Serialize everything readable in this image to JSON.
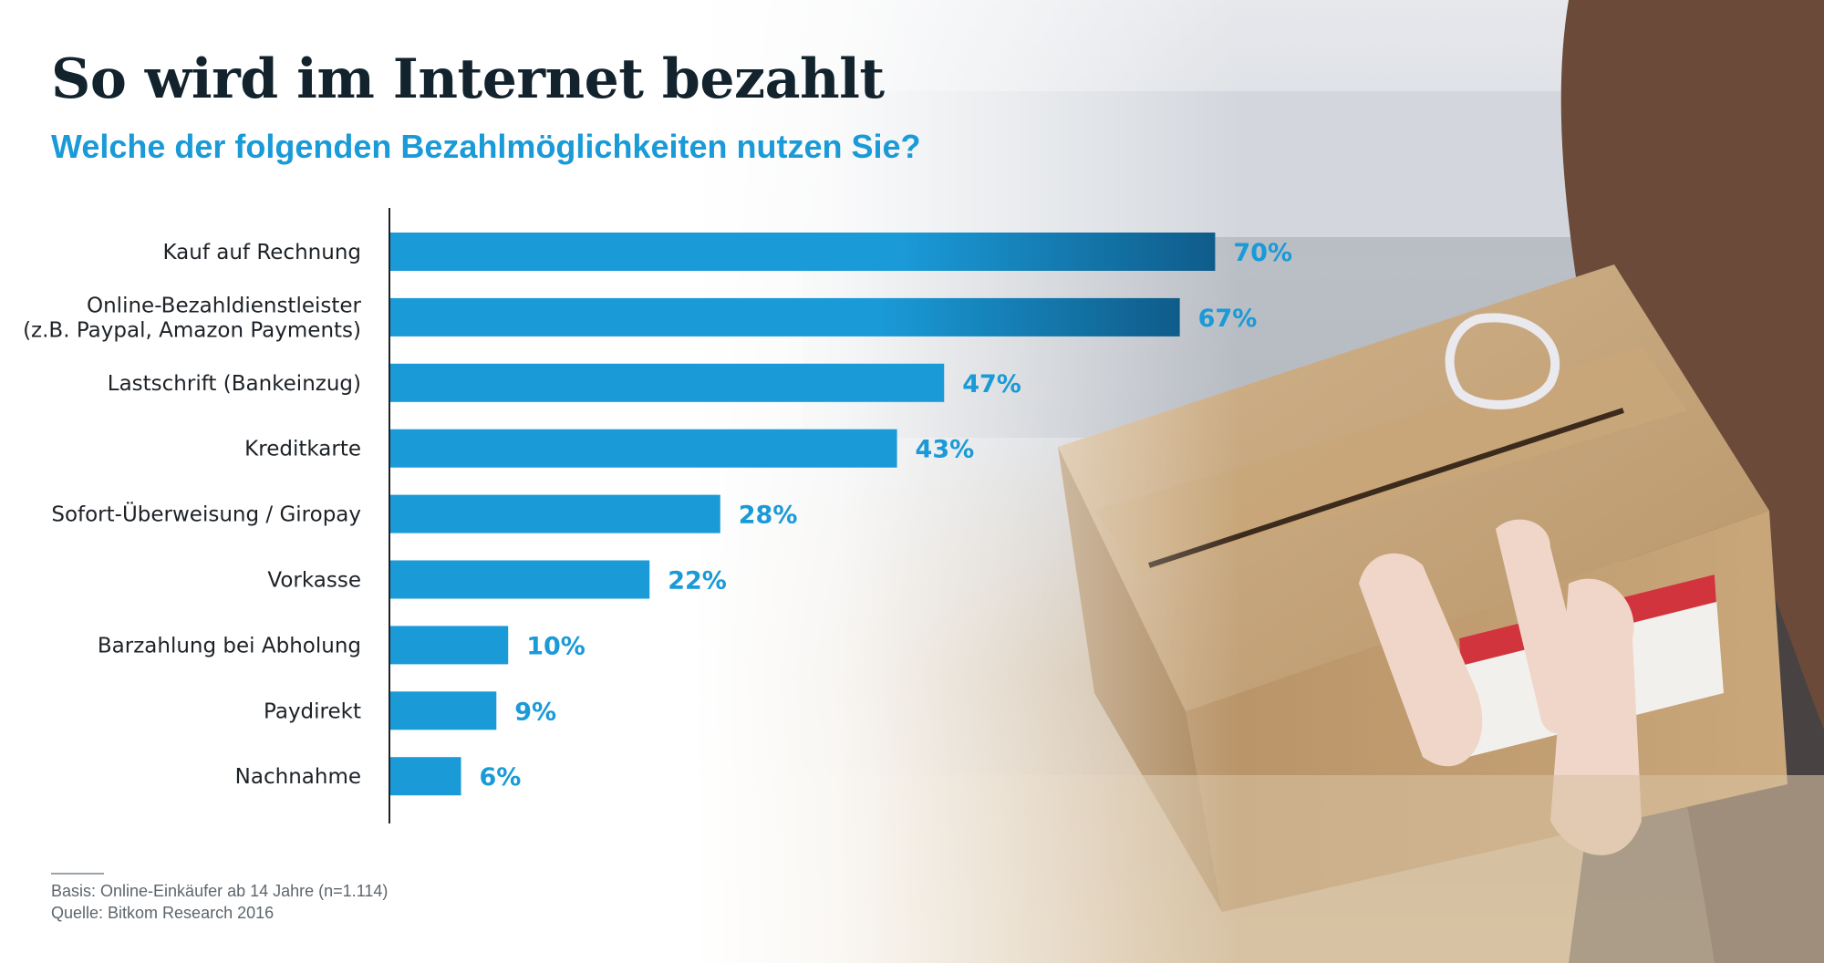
{
  "title": "So wird im Internet bezahlt",
  "subtitle": "Welche der folgenden Bezahlmöglichkeiten nutzen Sie?",
  "footer": {
    "basis": "Basis: Online-Einkäufer ab 14 Jahre (n=1.114)",
    "source": "Quelle: Bitkom Research 2016"
  },
  "colors": {
    "bar": "#1a9ad7",
    "bar_dark": "#0f5c8a",
    "title": "#12232e",
    "subtitle": "#1a9ad7"
  },
  "chart_data": {
    "type": "bar",
    "orientation": "horizontal",
    "title": "So wird im Internet bezahlt",
    "subtitle": "Welche der folgenden Bezahlmöglichkeiten nutzen Sie?",
    "xlabel": "",
    "ylabel": "",
    "unit": "%",
    "xlim": [
      0,
      100
    ],
    "grid": false,
    "categories": [
      [
        "Kauf auf Rechnung"
      ],
      [
        "Online-Bezahldienstleister",
        "(z.B. Paypal, Amazon Payments)"
      ],
      [
        "Lastschrift (Bankeinzug)"
      ],
      [
        "Kreditkarte"
      ],
      [
        "Sofort-Überweisung / Giropay"
      ],
      [
        "Vorkasse"
      ],
      [
        "Barzahlung bei Abholung"
      ],
      [
        "Paydirekt"
      ],
      [
        "Nachnahme"
      ]
    ],
    "values": [
      70,
      67,
      47,
      43,
      28,
      22,
      10,
      9,
      6
    ],
    "value_labels": [
      "70%",
      "67%",
      "47%",
      "43%",
      "28%",
      "22%",
      "10%",
      "9%",
      "6%"
    ]
  }
}
